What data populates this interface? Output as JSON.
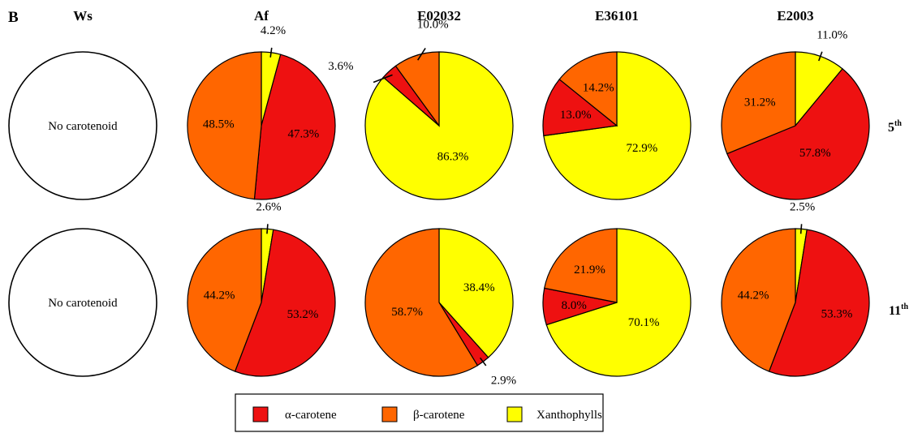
{
  "chart_data": {
    "type": "pie",
    "panel_label": "B",
    "columns": [
      "Ws",
      "Af",
      "E02032",
      "E36101",
      "E2003"
    ],
    "rows": [
      {
        "label": "5",
        "sup": "th"
      },
      {
        "label": "11",
        "sup": "th"
      }
    ],
    "empty_text": "No carotenoid",
    "legend": [
      {
        "key": "alpha",
        "label": "α-carotene",
        "color": "#ee1111"
      },
      {
        "key": "beta",
        "label": "β-carotene",
        "color": "#ff6600"
      },
      {
        "key": "xan",
        "label": "Xanthophylls",
        "color": "#ffff00"
      }
    ],
    "pies": [
      {
        "row": 0,
        "col": 0,
        "empty": true
      },
      {
        "row": 0,
        "col": 1,
        "slices": [
          {
            "key": "xan",
            "value": 4.2,
            "label": "4.2%"
          },
          {
            "key": "alpha",
            "value": 47.3,
            "label": "47.3%"
          },
          {
            "key": "beta",
            "value": 48.5,
            "label": "48.5%"
          }
        ]
      },
      {
        "row": 0,
        "col": 2,
        "slices": [
          {
            "key": "xan",
            "value": 86.3,
            "label": "86.3%"
          },
          {
            "key": "alpha",
            "value": 3.6,
            "label": "3.6%"
          },
          {
            "key": "beta",
            "value": 10.0,
            "label": "10.0%"
          }
        ]
      },
      {
        "row": 0,
        "col": 3,
        "slices": [
          {
            "key": "xan",
            "value": 72.9,
            "label": "72.9%"
          },
          {
            "key": "alpha",
            "value": 13.0,
            "label": "13.0%"
          },
          {
            "key": "beta",
            "value": 14.2,
            "label": "14.2%"
          }
        ]
      },
      {
        "row": 0,
        "col": 4,
        "slices": [
          {
            "key": "xan",
            "value": 11.0,
            "label": "11.0%"
          },
          {
            "key": "alpha",
            "value": 57.8,
            "label": "57.8%"
          },
          {
            "key": "beta",
            "value": 31.2,
            "label": "31.2%"
          }
        ]
      },
      {
        "row": 1,
        "col": 0,
        "empty": true
      },
      {
        "row": 1,
        "col": 1,
        "slices": [
          {
            "key": "xan",
            "value": 2.6,
            "label": "2.6%"
          },
          {
            "key": "alpha",
            "value": 53.2,
            "label": "53.2%"
          },
          {
            "key": "beta",
            "value": 44.2,
            "label": "44.2%"
          }
        ]
      },
      {
        "row": 1,
        "col": 2,
        "slices": [
          {
            "key": "xan",
            "value": 38.4,
            "label": "38.4%"
          },
          {
            "key": "alpha",
            "value": 2.9,
            "label": "2.9%"
          },
          {
            "key": "beta",
            "value": 58.7,
            "label": "58.7%"
          }
        ]
      },
      {
        "row": 1,
        "col": 3,
        "slices": [
          {
            "key": "xan",
            "value": 70.1,
            "label": "70.1%"
          },
          {
            "key": "alpha",
            "value": 8.0,
            "label": "8.0%"
          },
          {
            "key": "beta",
            "value": 21.9,
            "label": "21.9%"
          }
        ]
      },
      {
        "row": 1,
        "col": 4,
        "slices": [
          {
            "key": "xan",
            "value": 2.5,
            "label": "2.5%"
          },
          {
            "key": "alpha",
            "value": 53.3,
            "label": "53.3%"
          },
          {
            "key": "beta",
            "value": 44.2,
            "label": "44.2%"
          }
        ]
      }
    ]
  }
}
